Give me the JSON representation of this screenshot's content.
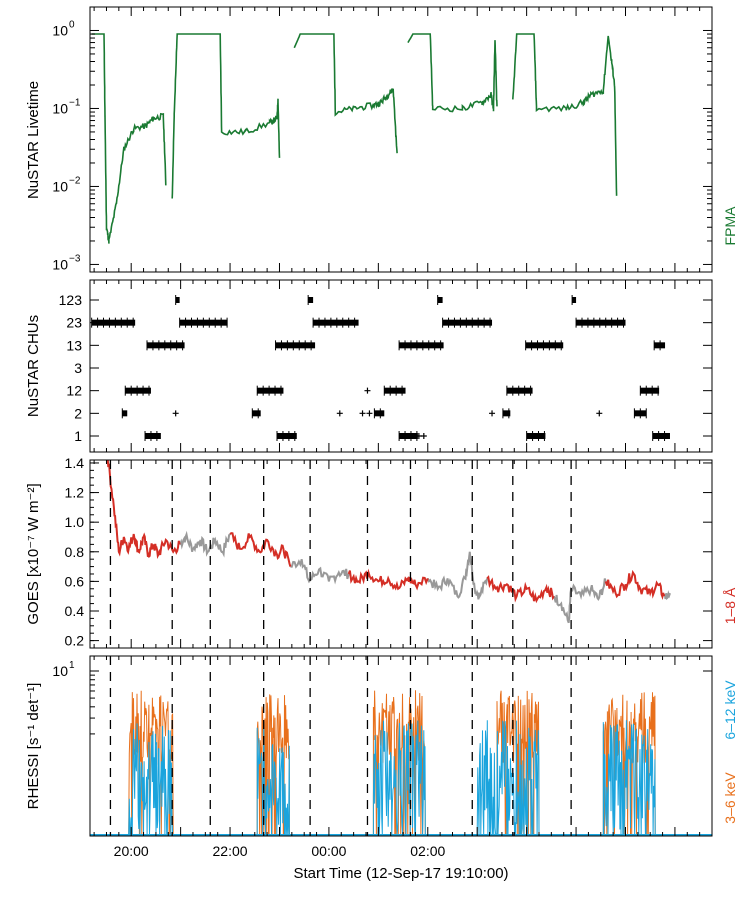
{
  "chart_data": [
    {
      "type": "line",
      "panel": "livetime",
      "ylabel": "NuSTAR Livetime",
      "yscale": "log",
      "ylim": [
        0.0008,
        2.0
      ],
      "yticks": [
        {
          "v": 0.001,
          "base": "10",
          "exp": "−3"
        },
        {
          "v": 0.01,
          "base": "10",
          "exp": "−2"
        },
        {
          "v": 0.1,
          "base": "10",
          "exp": "−1"
        },
        {
          "v": 1,
          "base": "10",
          "exp": "0"
        }
      ],
      "series": [
        {
          "name": "FPMA",
          "color": "#1a7a32"
        }
      ],
      "segments": [
        [
          [
            19.2,
            0.9
          ],
          [
            19.45,
            0.9
          ],
          [
            19.47,
            0.08
          ],
          [
            19.5,
            0.003
          ],
          [
            19.55,
            0.002
          ],
          [
            19.7,
            0.006
          ],
          [
            19.85,
            0.03
          ],
          [
            20.05,
            0.055
          ],
          [
            20.3,
            0.06
          ],
          [
            20.45,
            0.075
          ],
          [
            20.65,
            0.08
          ],
          [
            20.7,
            0.011
          ]
        ],
        [
          [
            20.83,
            0.007
          ],
          [
            20.87,
            0.08
          ],
          [
            20.93,
            0.9
          ],
          [
            21.8,
            0.9
          ],
          [
            21.83,
            0.05
          ],
          [
            22.3,
            0.05
          ],
          [
            22.8,
            0.065
          ],
          [
            22.95,
            0.075
          ],
          [
            22.97,
            0.13
          ],
          [
            23.0,
            0.022
          ]
        ],
        [
          [
            23.3,
            0.6
          ],
          [
            23.42,
            0.9
          ],
          [
            24.1,
            0.9
          ],
          [
            24.13,
            0.09
          ],
          [
            24.5,
            0.1
          ],
          [
            24.9,
            0.11
          ],
          [
            25.05,
            0.12
          ],
          [
            25.2,
            0.15
          ],
          [
            25.3,
            0.18
          ],
          [
            25.38,
            0.025
          ]
        ],
        [
          [
            25.6,
            0.7
          ],
          [
            25.7,
            0.9
          ],
          [
            26.05,
            0.9
          ],
          [
            26.1,
            0.1
          ],
          [
            26.7,
            0.1
          ],
          [
            27.1,
            0.12
          ],
          [
            27.28,
            0.15
          ],
          [
            27.33,
            0.1
          ],
          [
            27.36,
            0.75
          ],
          [
            27.4,
            0.1
          ]
        ],
        [
          [
            27.72,
            0.12
          ],
          [
            27.8,
            0.9
          ],
          [
            28.15,
            0.9
          ],
          [
            28.2,
            0.1
          ],
          [
            28.8,
            0.1
          ],
          [
            29.15,
            0.12
          ],
          [
            29.3,
            0.15
          ],
          [
            29.55,
            0.17
          ],
          [
            29.65,
            0.85
          ],
          [
            29.72,
            0.4
          ],
          [
            29.78,
            0.2
          ],
          [
            29.82,
            0.007
          ]
        ]
      ]
    },
    {
      "type": "scatter",
      "panel": "chus",
      "ylabel": "NuSTAR CHUs",
      "categories": [
        "1",
        "2",
        "12",
        "3",
        "13",
        "23",
        "123"
      ],
      "bars": {
        "123": [
          [
            20.9,
            20.98
          ],
          [
            23.58,
            23.68
          ],
          [
            26.2,
            26.3
          ],
          [
            28.92,
            29.0
          ]
        ],
        "23": [
          [
            19.2,
            20.08
          ],
          [
            20.98,
            21.95
          ],
          [
            23.68,
            24.6
          ],
          [
            26.3,
            27.3
          ],
          [
            29.0,
            30.0
          ]
        ],
        "13": [
          [
            20.32,
            21.08
          ],
          [
            22.92,
            23.72
          ],
          [
            25.42,
            26.32
          ],
          [
            27.98,
            28.74
          ],
          [
            30.58,
            30.8
          ]
        ],
        "12": [
          [
            19.88,
            20.4
          ],
          [
            22.55,
            23.08
          ],
          [
            25.12,
            25.55
          ],
          [
            27.6,
            28.12
          ],
          [
            30.3,
            30.68
          ]
        ],
        "2": [
          [
            19.82,
            19.92
          ],
          [
            22.45,
            22.62
          ],
          [
            24.92,
            25.12
          ],
          [
            27.52,
            27.67
          ],
          [
            30.18,
            30.42
          ]
        ],
        "1": [
          [
            20.28,
            20.6
          ],
          [
            22.95,
            23.35
          ],
          [
            25.42,
            25.8
          ],
          [
            28.0,
            28.38
          ],
          [
            30.55,
            30.9
          ]
        ]
      },
      "plus": {
        "2": [
          20.9,
          24.22,
          24.68,
          24.82,
          27.3,
          29.47
        ],
        "12": [
          24.78
        ],
        "1": [
          25.82,
          25.92
        ]
      }
    },
    {
      "type": "line",
      "panel": "goes",
      "ylabel": "GOES [x10⁻⁷ W m⁻²]",
      "ylim": [
        0.15,
        1.42
      ],
      "yticks": [
        "0.2",
        "0.4",
        "0.6",
        "0.8",
        "1.0",
        "1.2",
        "1.4"
      ],
      "series": [
        {
          "name": "1–8 Å",
          "color": "#d42e25"
        },
        {
          "name": "gap",
          "color": "#999999"
        }
      ],
      "red": [
        [
          [
            19.52,
            1.45
          ],
          [
            19.65,
            1.1
          ],
          [
            19.75,
            0.8
          ],
          [
            19.85,
            0.9
          ],
          [
            19.95,
            0.82
          ],
          [
            20.05,
            0.92
          ],
          [
            20.15,
            0.8
          ],
          [
            20.25,
            0.9
          ],
          [
            20.35,
            0.78
          ],
          [
            20.45,
            0.85
          ],
          [
            20.55,
            0.78
          ],
          [
            20.7,
            0.88
          ],
          [
            20.85,
            0.8
          ],
          [
            20.98,
            0.85
          ]
        ],
        [
          [
            22.0,
            0.92
          ],
          [
            22.2,
            0.82
          ],
          [
            22.4,
            0.9
          ],
          [
            22.6,
            0.8
          ],
          [
            22.75,
            0.88
          ],
          [
            22.95,
            0.78
          ],
          [
            23.08,
            0.82
          ],
          [
            23.22,
            0.7
          ]
        ],
        [
          [
            24.4,
            0.65
          ],
          [
            24.6,
            0.6
          ],
          [
            24.8,
            0.66
          ],
          [
            25.0,
            0.6
          ],
          [
            25.2,
            0.62
          ],
          [
            25.4,
            0.55
          ],
          [
            25.6,
            0.62
          ],
          [
            25.75,
            0.58
          ],
          [
            26.0,
            0.62
          ]
        ],
        [
          [
            27.2,
            0.62
          ],
          [
            27.4,
            0.56
          ],
          [
            27.6,
            0.58
          ],
          [
            27.8,
            0.5
          ],
          [
            28.0,
            0.55
          ],
          [
            28.2,
            0.47
          ],
          [
            28.4,
            0.56
          ],
          [
            28.55,
            0.5
          ]
        ],
        [
          [
            29.6,
            0.6
          ],
          [
            29.8,
            0.52
          ],
          [
            30.0,
            0.58
          ],
          [
            30.15,
            0.66
          ],
          [
            30.3,
            0.55
          ],
          [
            30.5,
            0.52
          ],
          [
            30.65,
            0.58
          ],
          [
            30.78,
            0.5
          ]
        ]
      ],
      "grey": [
        [
          [
            20.98,
            0.85
          ],
          [
            21.1,
            0.9
          ],
          [
            21.25,
            0.82
          ],
          [
            21.4,
            0.88
          ],
          [
            21.55,
            0.8
          ],
          [
            21.7,
            0.88
          ],
          [
            21.85,
            0.8
          ],
          [
            22.0,
            0.92
          ]
        ],
        [
          [
            23.22,
            0.7
          ],
          [
            23.45,
            0.75
          ],
          [
            23.6,
            0.6
          ],
          [
            23.8,
            0.68
          ],
          [
            24.0,
            0.6
          ],
          [
            24.2,
            0.66
          ],
          [
            24.4,
            0.65
          ]
        ],
        [
          [
            26.0,
            0.62
          ],
          [
            26.2,
            0.55
          ],
          [
            26.4,
            0.62
          ],
          [
            26.6,
            0.5
          ],
          [
            26.75,
            0.62
          ],
          [
            26.85,
            0.8
          ],
          [
            26.95,
            0.55
          ],
          [
            27.05,
            0.5
          ],
          [
            27.2,
            0.62
          ]
        ],
        [
          [
            28.55,
            0.5
          ],
          [
            28.7,
            0.45
          ],
          [
            28.85,
            0.32
          ],
          [
            28.9,
            0.55
          ],
          [
            29.1,
            0.5
          ],
          [
            29.3,
            0.55
          ],
          [
            29.45,
            0.48
          ],
          [
            29.6,
            0.6
          ]
        ],
        [
          [
            30.78,
            0.5
          ],
          [
            30.9,
            0.52
          ]
        ]
      ]
    },
    {
      "type": "area",
      "panel": "rhessi",
      "ylabel": "RHESSI [s⁻¹ det⁻¹]",
      "ytick": "10",
      "series": [
        {
          "name": "3–6 keV",
          "color": "#e8701c"
        },
        {
          "name": "6–12 keV",
          "color": "#1aa4dd"
        }
      ],
      "orange": [
        [
          19.95,
          20.85
        ],
        [
          22.55,
          23.2
        ],
        [
          24.9,
          25.95
        ],
        [
          27.4,
          28.25
        ],
        [
          29.55,
          30.6
        ]
      ],
      "blue": [
        [
          19.95,
          20.85
        ],
        [
          22.55,
          23.2
        ],
        [
          24.9,
          25.95
        ],
        [
          27.0,
          28.25
        ],
        [
          29.55,
          30.6
        ]
      ]
    }
  ],
  "dashed_lines": [
    19.58,
    20.83,
    21.6,
    22.68,
    23.62,
    24.78,
    25.65,
    26.9,
    27.72,
    28.9
  ],
  "xaxis": {
    "label": "Start Time (12-Sep-17 19:10:00)",
    "ticks": [
      {
        "v": 20,
        "t": "20:00"
      },
      {
        "v": 22,
        "t": "22:00"
      },
      {
        "v": 24,
        "t": "00:00"
      },
      {
        "v": 26,
        "t": "02:00"
      }
    ],
    "range": [
      19.1667,
      31.75
    ]
  },
  "legend": {
    "fpma": "FPMA",
    "goes": "1–8 Å",
    "rhessi_high": "6–12 keV",
    "rhessi_low": "3–6 keV"
  },
  "colors": {
    "green": "#1a7a32",
    "red": "#d42e25",
    "grey": "#999999",
    "orange": "#e8701c",
    "blue": "#1aa4dd"
  }
}
